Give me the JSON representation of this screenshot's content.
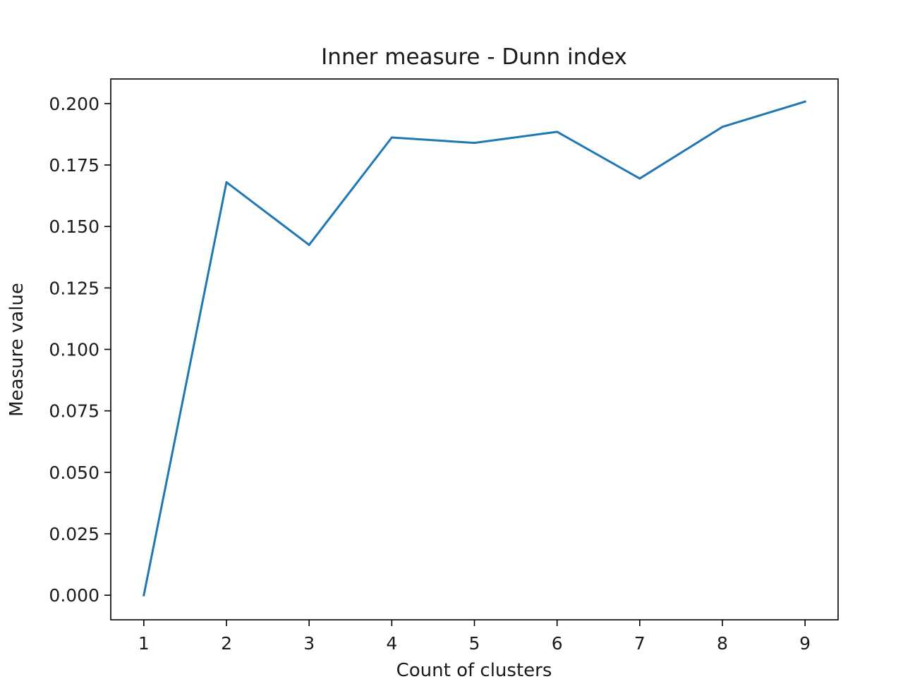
{
  "chart_data": {
    "type": "line",
    "title": "Inner measure - Dunn index",
    "xlabel": "Count of clusters",
    "ylabel": "Measure value",
    "x": [
      1,
      2,
      3,
      4,
      5,
      6,
      7,
      8,
      9
    ],
    "series": [
      {
        "values": [
          0.0,
          0.168,
          0.1425,
          0.1862,
          0.184,
          0.1885,
          0.1695,
          0.1905,
          0.2008
        ]
      }
    ],
    "xlim": [
      0.6,
      9.4
    ],
    "ylim": [
      -0.01,
      0.21
    ],
    "xticks": [
      1,
      2,
      3,
      4,
      5,
      6,
      7,
      8,
      9
    ],
    "xtick_labels": [
      "1",
      "2",
      "3",
      "4",
      "5",
      "6",
      "7",
      "8",
      "9"
    ],
    "yticks": [
      0.0,
      0.025,
      0.05,
      0.075,
      0.1,
      0.125,
      0.15,
      0.175,
      0.2
    ],
    "ytick_labels": [
      "0.000",
      "0.025",
      "0.050",
      "0.075",
      "0.100",
      "0.125",
      "0.150",
      "0.175",
      "0.200"
    ],
    "grid": false,
    "line_color": "#1f77b4"
  }
}
